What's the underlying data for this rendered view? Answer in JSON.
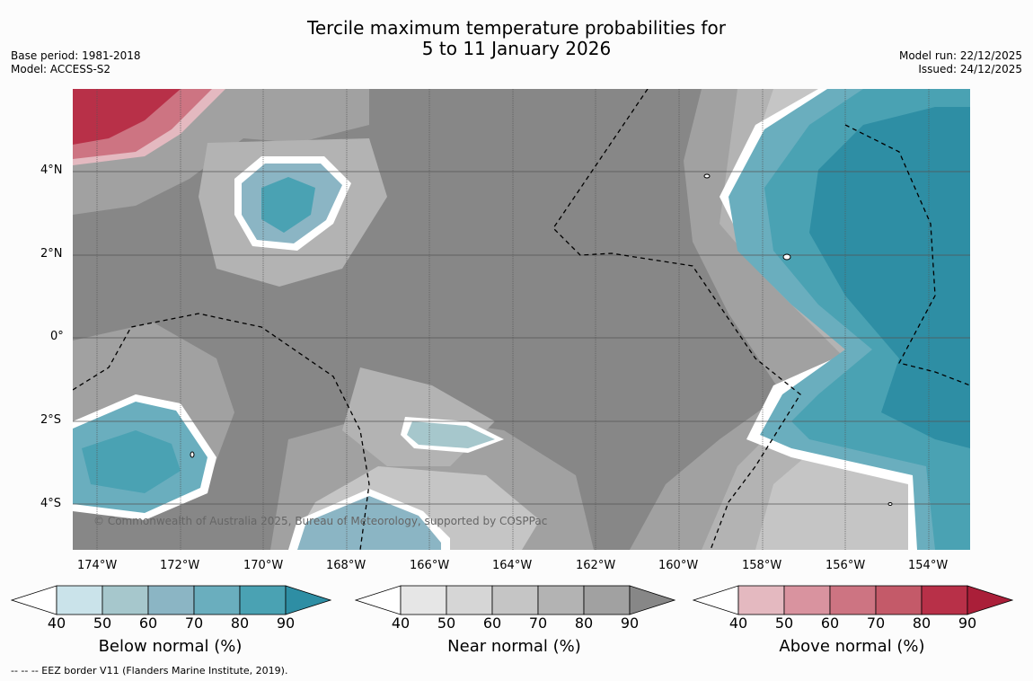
{
  "title": {
    "line1": "Tercile maximum temperature probabilities for",
    "line2": "5 to 11 January 2026"
  },
  "meta_left": {
    "base_period": "Base period: 1981-2018",
    "model": "Model: ACCESS-S2"
  },
  "meta_right": {
    "model_run": "Model run: 22/12/2025",
    "issued": "Issued: 24/12/2025"
  },
  "map": {
    "copyright": "© Commonwealth of Australia 2025, Bureau of Meteorology, supported by COSPPac",
    "lon_ticks": [
      "174°W",
      "172°W",
      "170°W",
      "168°W",
      "166°W",
      "164°W",
      "162°W",
      "160°W",
      "158°W",
      "156°W",
      "154°W"
    ],
    "lat_ticks": [
      "4°N",
      "2°N",
      "0°",
      "2°S",
      "4°S"
    ]
  },
  "colorbars": [
    {
      "title": "Below normal (%)",
      "ticks": [
        "40",
        "50",
        "60",
        "70",
        "80",
        "90"
      ],
      "colors": [
        "#cae3ea",
        "#a6c7cc",
        "#8bb5c4",
        "#6aaebe",
        "#4aa2b3",
        "#2e8ea4"
      ]
    },
    {
      "title": "Near normal (%)",
      "ticks": [
        "40",
        "50",
        "60",
        "70",
        "80",
        "90"
      ],
      "colors": [
        "#e6e6e6",
        "#d6d6d6",
        "#c5c5c5",
        "#b3b3b3",
        "#a1a1a1",
        "#878787"
      ]
    },
    {
      "title": "Above normal (%)",
      "ticks": [
        "40",
        "50",
        "60",
        "70",
        "80",
        "90"
      ],
      "colors": [
        "#e4b9c0",
        "#d9939f",
        "#cd7482",
        "#c45a69",
        "#b83048",
        "#aa1f39"
      ]
    }
  ],
  "footer": {
    "legend": "--  --  -- EEZ border V11 (Flanders Marine Institute, 2019)."
  },
  "colors": {
    "near_base": "#878787",
    "white_line": "#ffffff"
  }
}
